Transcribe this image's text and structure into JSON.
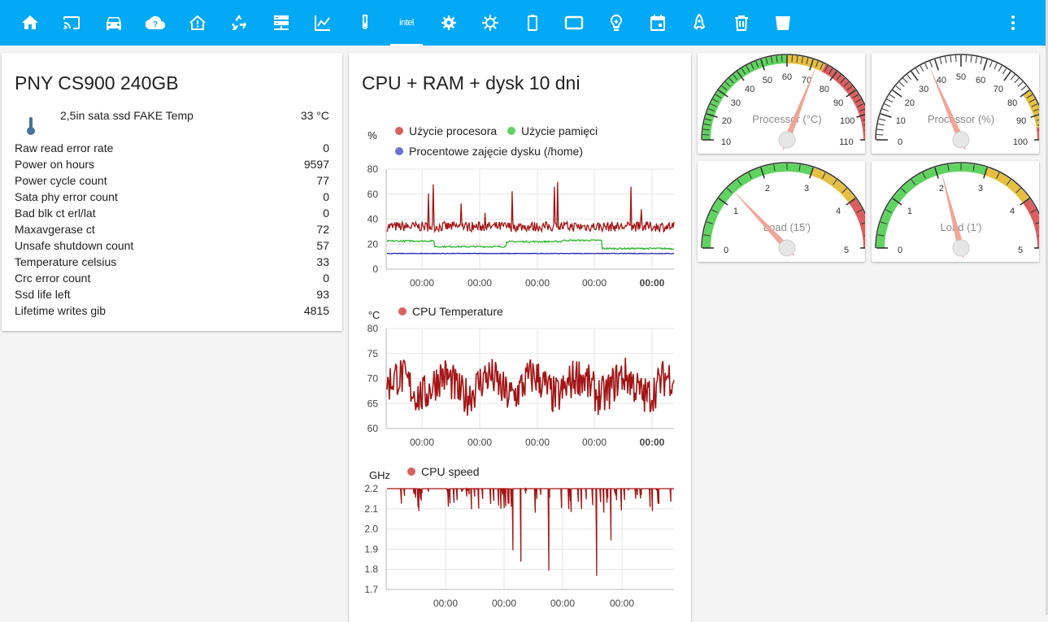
{
  "topbar": {
    "icons": [
      "home-icon",
      "cast-icon",
      "car-icon",
      "cloud-question-icon",
      "home-alert-icon",
      "recycle-icon",
      "server-icon",
      "chart-line-icon",
      "test-tube-icon",
      "intel-icon",
      "engine-icon",
      "sun-gear-icon",
      "battery-icon",
      "tablet-icon",
      "lightbulb-icon",
      "calendar-icon",
      "rocket-icon",
      "trash-icon",
      "delete-bin-icon",
      "more-vert-icon"
    ],
    "intel_label": "intel",
    "accent": "#03a9f4"
  },
  "ssd_card": {
    "title": "PNY CS900 240GB",
    "temp_sensor": {
      "label": "2,5in sata ssd FAKE Temp",
      "value": "33 °C",
      "icon": "thermometer-icon"
    },
    "attributes": [
      {
        "label": "Raw read error rate",
        "value": "0"
      },
      {
        "label": "Power on hours",
        "value": "9597"
      },
      {
        "label": "Power cycle count",
        "value": "77"
      },
      {
        "label": "Sata phy error count",
        "value": "0"
      },
      {
        "label": "Bad blk ct erl/lat",
        "value": "0"
      },
      {
        "label": "Maxavgerase ct",
        "value": "72"
      },
      {
        "label": "Unsafe shutdown count",
        "value": "57"
      },
      {
        "label": "Temperature celsius",
        "value": "33"
      },
      {
        "label": "Crc error count",
        "value": "0"
      },
      {
        "label": "Ssd life left",
        "value": "93"
      },
      {
        "label": "Lifetime writes gib",
        "value": "4815"
      }
    ]
  },
  "history_card": {
    "title": "CPU + RAM + dysk 10 dni"
  },
  "chart_data": [
    {
      "type": "line",
      "ylabel": "%",
      "ylim": [
        0,
        80
      ],
      "yticks": [
        "80",
        "60",
        "40",
        "20",
        "0"
      ],
      "x_tick_labels": [
        "00:00",
        "00:00",
        "00:00",
        "00:00",
        "00:00"
      ],
      "series": [
        {
          "name": "Użycie procesora",
          "color": "#a31515",
          "approx_level": 34
        },
        {
          "name": "Użycie pamięci",
          "color": "#2db52d",
          "approx_level": 20
        },
        {
          "name": "Procentowe zajęcie dysku (/home)",
          "color": "#2222aa",
          "approx_level": 12.5
        }
      ],
      "legend_colors": [
        "#db5f5f",
        "#5fd35f",
        "#6f6fd6"
      ]
    },
    {
      "type": "line",
      "ylabel": "°C",
      "ylim": [
        60,
        80
      ],
      "yticks": [
        "80",
        "75",
        "70",
        "65",
        "60"
      ],
      "x_tick_labels": [
        "00:00",
        "00:00",
        "00:00",
        "00:00",
        "00:00"
      ],
      "series": [
        {
          "name": "CPU Temperature",
          "color": "#a31515",
          "approx_level": 68
        }
      ],
      "legend_colors": [
        "#db5f5f"
      ]
    },
    {
      "type": "line",
      "ylabel": "GHz",
      "ylim": [
        1.7,
        2.2
      ],
      "yticks": [
        "2.2",
        "2.1",
        "2.0",
        "1.9",
        "1.8",
        "1.7"
      ],
      "x_tick_labels": [
        "00:00",
        "00:00",
        "00:00",
        "00:00"
      ],
      "series": [
        {
          "name": "CPU speed",
          "color": "#a31515",
          "approx_level": 2.2
        }
      ],
      "legend_colors": [
        "#db5f5f"
      ]
    }
  ],
  "gauges": [
    {
      "name": "Processor (°C)",
      "min": 10,
      "max": 110,
      "value": 72,
      "labels": [
        "10",
        "20",
        "30",
        "40",
        "50",
        "60",
        "70",
        "80",
        "90",
        "100",
        "110"
      ],
      "bands": [
        {
          "from": 10,
          "to": 60,
          "color": "#5fd35f"
        },
        {
          "from": 60,
          "to": 75,
          "color": "#e5c040"
        },
        {
          "from": 75,
          "to": 110,
          "color": "#db5f5f"
        }
      ]
    },
    {
      "name": "Processor (%)",
      "min": 0,
      "max": 100,
      "value": 37,
      "labels": [
        "0",
        "10",
        "20",
        "30",
        "40",
        "50",
        "60",
        "70",
        "80",
        "90",
        "100"
      ],
      "bands": [
        {
          "from": 80,
          "to": 95,
          "color": "#e5c040"
        },
        {
          "from": 95,
          "to": 100,
          "color": "#db5f5f"
        }
      ]
    },
    {
      "name": "Load (15')",
      "min": 0,
      "max": 5,
      "value": 1.3,
      "labels": [
        "0",
        "1",
        "2",
        "3",
        "4",
        "5"
      ],
      "bands": [
        {
          "from": 0,
          "to": 3,
          "color": "#5fd35f"
        },
        {
          "from": 3,
          "to": 4,
          "color": "#e5c040"
        },
        {
          "from": 4,
          "to": 5,
          "color": "#db5f5f"
        }
      ]
    },
    {
      "name": "Load (1')",
      "min": 0,
      "max": 5,
      "value": 2.1,
      "labels": [
        "0",
        "1",
        "2",
        "3",
        "4",
        "5"
      ],
      "bands": [
        {
          "from": 0,
          "to": 3,
          "color": "#5fd35f"
        },
        {
          "from": 3,
          "to": 4,
          "color": "#e5c040"
        },
        {
          "from": 4,
          "to": 5,
          "color": "#db5f5f"
        }
      ]
    }
  ]
}
